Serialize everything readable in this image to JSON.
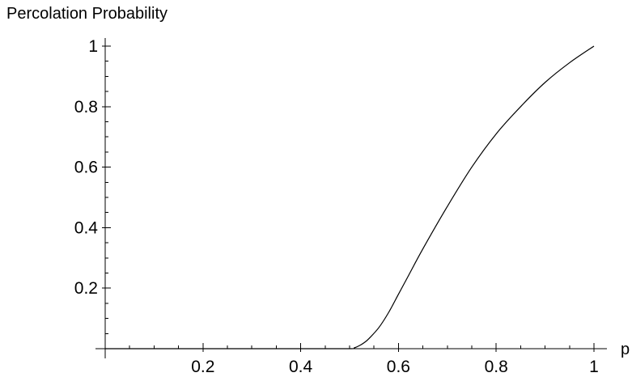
{
  "chart_data": {
    "type": "line",
    "xlabel": "p",
    "ylabel": "Percolation Probability",
    "xlim": [
      0,
      1
    ],
    "ylim": [
      0,
      1
    ],
    "x_ticks": [
      {
        "value": 0.2,
        "label": "0.2"
      },
      {
        "value": 0.4,
        "label": "0.4"
      },
      {
        "value": 0.6,
        "label": "0.6"
      },
      {
        "value": 0.8,
        "label": "0.8"
      },
      {
        "value": 1.0,
        "label": "1"
      }
    ],
    "y_ticks": [
      {
        "value": 0.2,
        "label": "0.2"
      },
      {
        "value": 0.4,
        "label": "0.4"
      },
      {
        "value": 0.6,
        "label": "0.6"
      },
      {
        "value": 0.8,
        "label": "0.8"
      },
      {
        "value": 1.0,
        "label": "1"
      }
    ],
    "series": [
      {
        "x": [
          0.0,
          0.1,
          0.2,
          0.3,
          0.4,
          0.5,
          0.51,
          0.52,
          0.53,
          0.54,
          0.56,
          0.58,
          0.6,
          0.62,
          0.65,
          0.7,
          0.75,
          0.8,
          0.85,
          0.9,
          0.95,
          1.0
        ],
        "y": [
          0.0,
          0.0,
          0.0,
          0.0,
          0.0,
          0.0,
          0.003,
          0.01,
          0.02,
          0.034,
          0.07,
          0.12,
          0.18,
          0.24,
          0.33,
          0.47,
          0.6,
          0.71,
          0.8,
          0.88,
          0.945,
          1.0
        ]
      }
    ],
    "grid": false,
    "legend": "none"
  }
}
